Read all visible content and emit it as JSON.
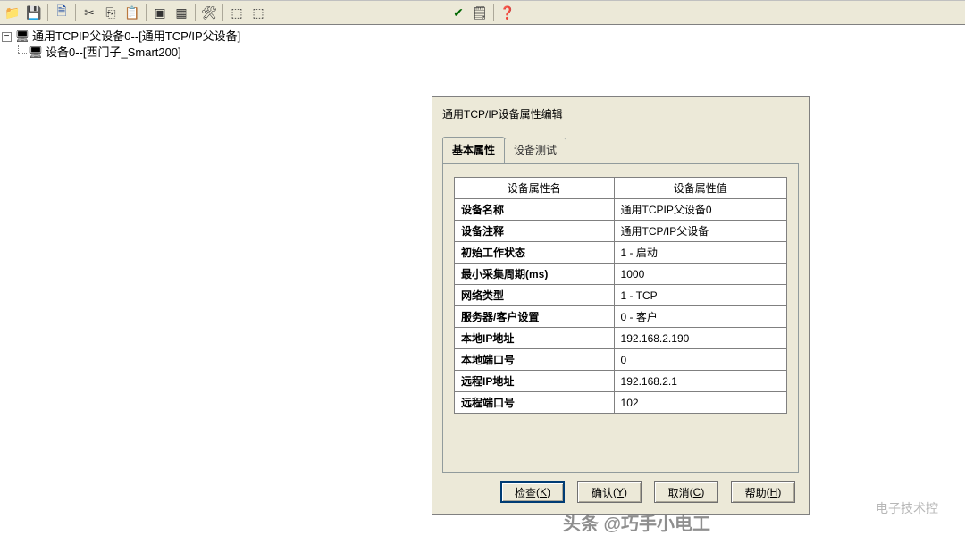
{
  "toolbar": {
    "icons": [
      "folder",
      "save",
      "",
      "cut",
      "copy",
      "paste",
      "",
      "tools",
      "hammer",
      "",
      "chip1",
      "chip2",
      "",
      "",
      "",
      "check-doc",
      "form",
      "",
      "help"
    ]
  },
  "tree": {
    "root": "通用TCPIP父设备0--[通用TCP/IP父设备]",
    "child": "设备0--[西门子_Smart200]"
  },
  "dialog": {
    "title": "通用TCP/IP设备属性编辑",
    "tabs": {
      "t1": "基本属性",
      "t2": "设备测试"
    },
    "columns": {
      "name": "设备属性名",
      "value": "设备属性值"
    },
    "rows": [
      {
        "name": "设备名称",
        "value": "通用TCPIP父设备0"
      },
      {
        "name": "设备注释",
        "value": "通用TCP/IP父设备"
      },
      {
        "name": "初始工作状态",
        "value": "1 - 启动"
      },
      {
        "name": "最小采集周期(ms)",
        "value": "1000"
      },
      {
        "name": "网络类型",
        "value": "1 - TCP"
      },
      {
        "name": "服务器/客户设置",
        "value": "0 - 客户"
      },
      {
        "name": "本地IP地址",
        "value": "192.168.2.190"
      },
      {
        "name": "本地端口号",
        "value": "0"
      },
      {
        "name": "远程IP地址",
        "value": "192.168.2.1"
      },
      {
        "name": "远程端口号",
        "value": "102"
      }
    ],
    "buttons": {
      "check": {
        "label": "检查",
        "mnemonic": "K"
      },
      "ok": {
        "label": "确认",
        "mnemonic": "Y"
      },
      "cancel": {
        "label": "取消",
        "mnemonic": "C"
      },
      "help": {
        "label": "帮助",
        "mnemonic": "H"
      }
    }
  },
  "watermarks": {
    "w1": "电子技术控",
    "w2": "头条 @巧手小电工"
  }
}
